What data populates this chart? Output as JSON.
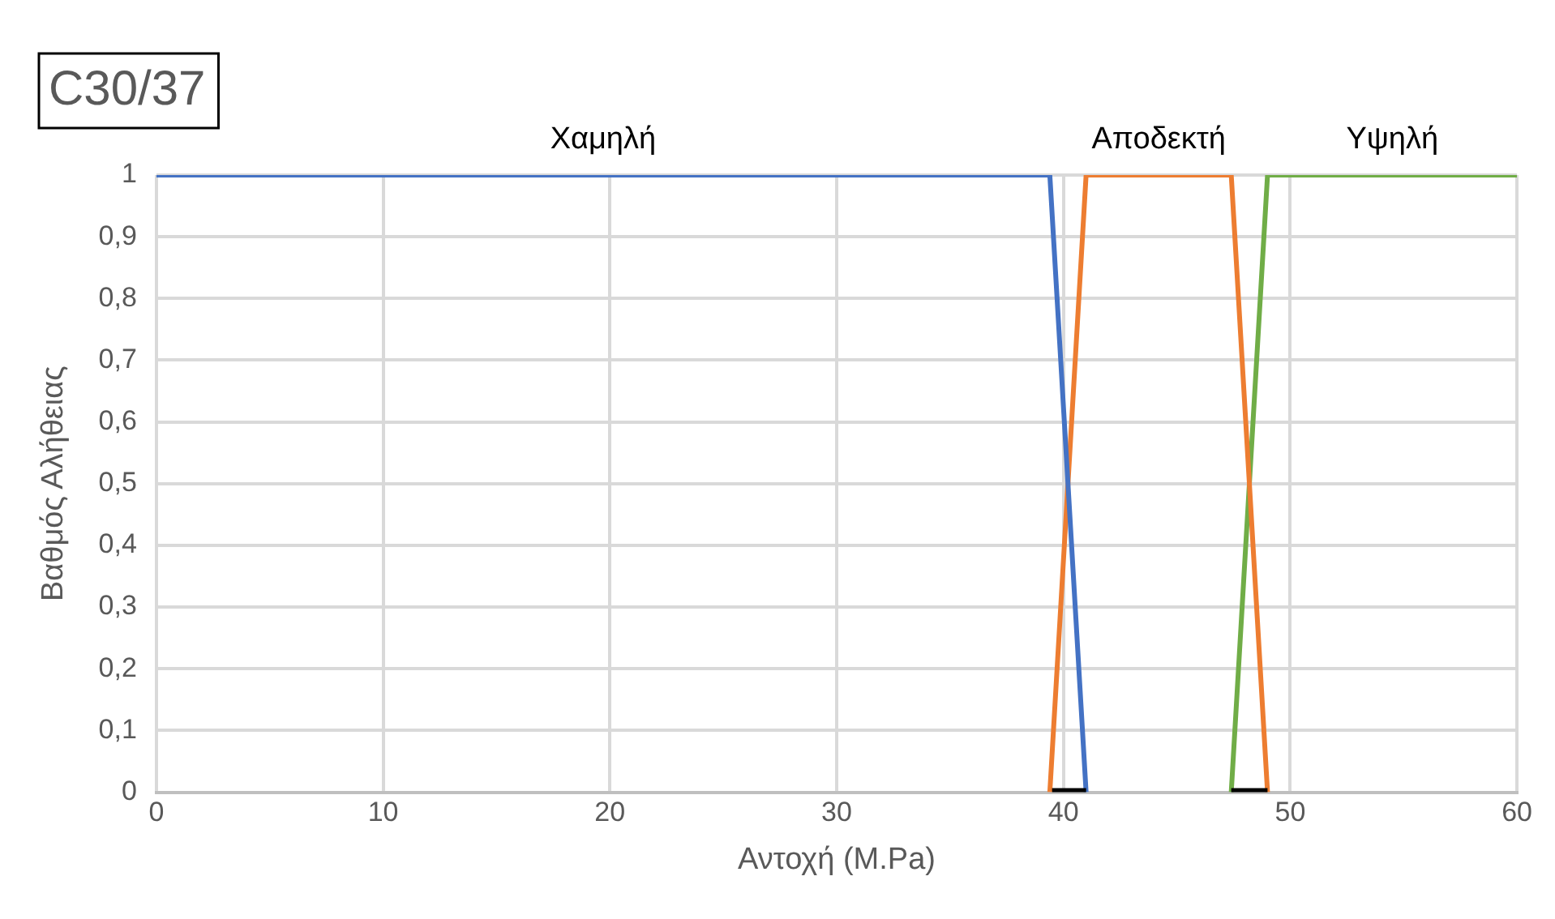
{
  "chart_data": {
    "type": "line",
    "title": "C30/37",
    "xlabel": "Αντοχή (M.Pa)",
    "ylabel": "Βαθμός Αλήθειας",
    "series": [
      {
        "name": "Χαμηλή",
        "color": "#4472c4",
        "x": [
          0,
          39.4,
          41.0
        ],
        "values": [
          1,
          1,
          0
        ]
      },
      {
        "name": "Αποδεκτή",
        "color": "#ed7d31",
        "x": [
          39.4,
          41.0,
          47.4,
          49.0
        ],
        "values": [
          0,
          1,
          1,
          0
        ]
      },
      {
        "name": "Υψηλή",
        "color": "#70ad47",
        "x": [
          47.4,
          49.0,
          60
        ],
        "values": [
          0,
          1,
          1
        ]
      },
      {
        "color": "#000000",
        "x": [
          39.5,
          41.0
        ],
        "values": [
          0,
          0
        ]
      },
      {
        "color": "#000000",
        "x": [
          47.4,
          49.0
        ],
        "values": [
          0,
          0
        ]
      }
    ],
    "xlim": [
      0,
      60
    ],
    "xticks": [
      0,
      10,
      20,
      30,
      40,
      50,
      60
    ],
    "ylim": [
      0,
      1
    ],
    "yticks": [
      {
        "value": 0,
        "label": "0"
      },
      {
        "value": 0.1,
        "label": "0,1"
      },
      {
        "value": 0.2,
        "label": "0,2"
      },
      {
        "value": 0.3,
        "label": "0,3"
      },
      {
        "value": 0.4,
        "label": "0,4"
      },
      {
        "value": 0.5,
        "label": "0,5"
      },
      {
        "value": 0.6,
        "label": "0,6"
      },
      {
        "value": 0.7,
        "label": "0,7"
      },
      {
        "value": 0.8,
        "label": "0,8"
      },
      {
        "value": 0.9,
        "label": "0,9"
      },
      {
        "value": 1,
        "label": "1"
      }
    ],
    "grid": true,
    "marker": "none",
    "line_style": "solid",
    "legend": false
  }
}
